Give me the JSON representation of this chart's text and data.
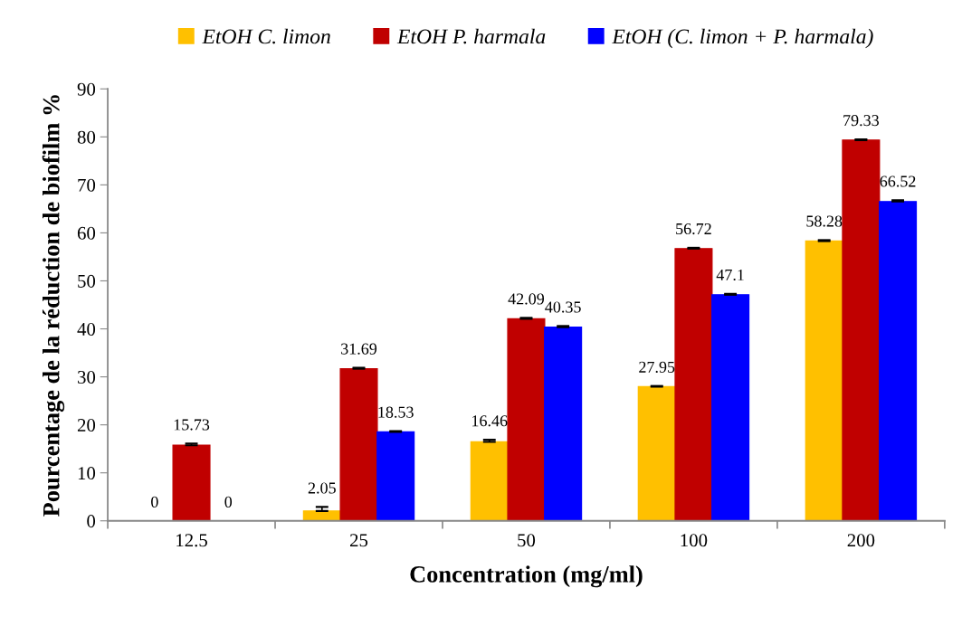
{
  "chart_data": {
    "type": "bar",
    "xlabel": "Concentration (mg/ml)",
    "ylabel": "Pourcentage de la réduction de biofilm %",
    "categories": [
      "12.5",
      "25",
      "50",
      "100",
      "200"
    ],
    "series": [
      {
        "name": "EtOH C. limon",
        "color": "#ffc000",
        "values": [
          0,
          2.05,
          16.46,
          27.95,
          58.28
        ],
        "errors": [
          null,
          [
            2.05,
            2.9
          ],
          [
            16.46,
            16.9
          ],
          [
            27.95,
            28.1
          ],
          [
            58.28,
            58.5
          ]
        ]
      },
      {
        "name": "EtOH P. harmala",
        "color": "#c00000",
        "values": [
          15.73,
          31.69,
          42.09,
          56.72,
          79.33
        ],
        "errors": [
          [
            15.73,
            16.1
          ],
          [
            31.69,
            31.9
          ],
          [
            42.09,
            42.3
          ],
          [
            56.72,
            56.9
          ],
          [
            79.33,
            79.5
          ]
        ]
      },
      {
        "name": "EtOH (C. limon + P. harmala)",
        "color": "#0000ff",
        "values": [
          0,
          18.53,
          40.35,
          47.1,
          66.52
        ],
        "errors": [
          null,
          [
            18.53,
            18.7
          ],
          [
            40.35,
            40.6
          ],
          [
            47.1,
            47.3
          ],
          [
            66.52,
            66.8
          ]
        ]
      }
    ],
    "ylim": [
      0,
      90
    ],
    "yticks": [
      0,
      10,
      20,
      30,
      40,
      50,
      60,
      70,
      80,
      90
    ],
    "data_labels": true,
    "grid": false,
    "legend": "top"
  }
}
